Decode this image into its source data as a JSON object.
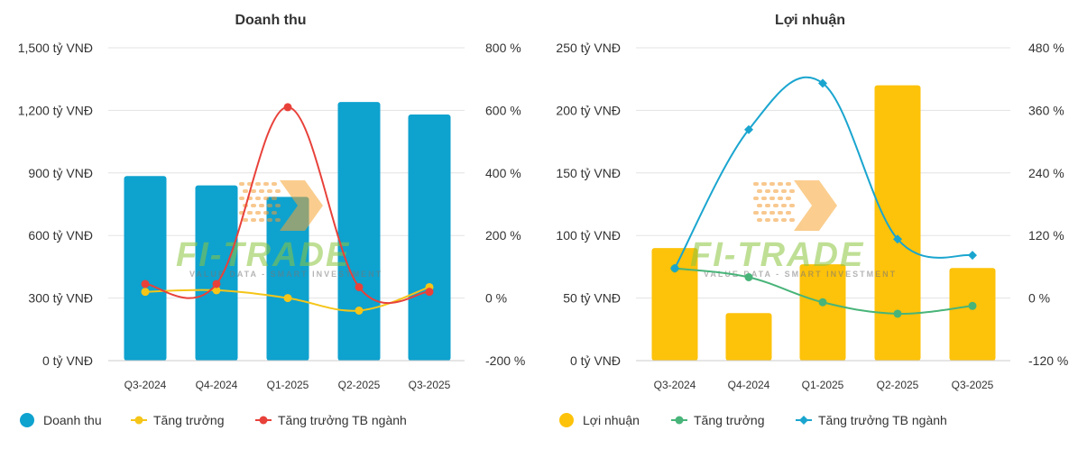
{
  "chart_data": [
    {
      "type": "bar",
      "title": "Doanh thu",
      "categories": [
        "Q3-2024",
        "Q4-2024",
        "Q1-2025",
        "Q2-2025",
        "Q3-2025"
      ],
      "y_left": {
        "min": 0,
        "max": 1500,
        "ticks": [
          0,
          300,
          600,
          900,
          1200,
          1500
        ],
        "tick_labels": [
          "0 tỷ VNĐ",
          "300 tỷ VNĐ",
          "600 tỷ VNĐ",
          "900 tỷ VNĐ",
          "1,200 tỷ VNĐ",
          "1,500 tỷ VNĐ"
        ]
      },
      "y_right": {
        "min": -200,
        "max": 800,
        "ticks": [
          -200,
          0,
          200,
          400,
          600,
          800
        ],
        "tick_labels": [
          "-200 %",
          "0 %",
          "200 %",
          "400 %",
          "600 %",
          "800 %"
        ]
      },
      "series": [
        {
          "name": "Doanh thu",
          "kind": "bar",
          "axis": "left",
          "color": "#0ea2cf",
          "values": [
            885,
            840,
            785,
            1240,
            1180
          ]
        },
        {
          "name": "Tăng trưởng",
          "kind": "line",
          "axis": "right",
          "color": "#f5c518",
          "values": [
            20,
            25,
            0,
            -40,
            35
          ]
        },
        {
          "name": "Tăng trưởng TB ngành",
          "kind": "line",
          "axis": "right",
          "color": "#e8413a",
          "values": [
            45,
            45,
            610,
            35,
            20
          ]
        }
      ],
      "legend_position": "bottom",
      "grid": true
    },
    {
      "type": "bar",
      "title": "Lợi nhuận",
      "categories": [
        "Q3-2024",
        "Q4-2024",
        "Q1-2025",
        "Q2-2025",
        "Q3-2025"
      ],
      "y_left": {
        "min": 0,
        "max": 250,
        "ticks": [
          0,
          50,
          100,
          150,
          200,
          250
        ],
        "tick_labels": [
          "0 tỷ VNĐ",
          "50 tỷ VNĐ",
          "100 tỷ VNĐ",
          "150 tỷ VNĐ",
          "200 tỷ VNĐ",
          "250 tỷ VNĐ"
        ]
      },
      "y_right": {
        "min": -120,
        "max": 480,
        "ticks": [
          -120,
          0,
          120,
          240,
          360,
          480
        ],
        "tick_labels": [
          "-120 %",
          "0 %",
          "120 %",
          "240 %",
          "360 %",
          "480 %"
        ]
      },
      "series": [
        {
          "name": "Lợi nhuận",
          "kind": "bar",
          "axis": "left",
          "color": "#fdc20a",
          "values": [
            90,
            38,
            77,
            220,
            74
          ]
        },
        {
          "name": "Tăng trưởng",
          "kind": "line",
          "axis": "right",
          "color": "#48b479",
          "values": [
            57,
            40,
            -8,
            -30,
            -15
          ]
        },
        {
          "name": "Tăng trưởng TB ngành",
          "kind": "line",
          "axis": "right",
          "color": "#1aa5cf",
          "values": [
            57,
            323,
            412,
            113,
            82
          ]
        }
      ],
      "legend_position": "bottom",
      "grid": true
    }
  ],
  "watermark": {
    "brand": "FI-TRADE",
    "tagline": "VALUE DATA - SMART INVESTMENT"
  }
}
